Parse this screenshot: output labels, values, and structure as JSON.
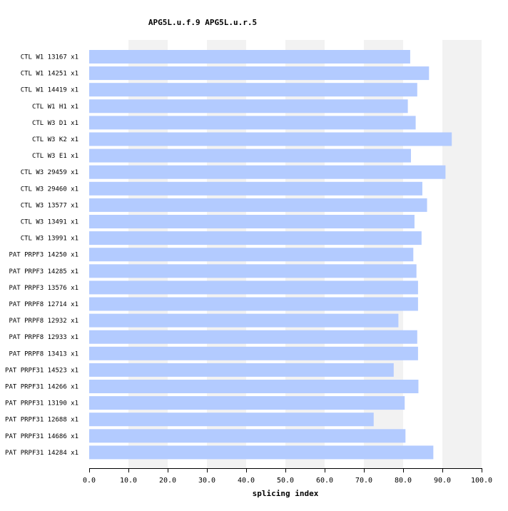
{
  "chart_data": {
    "type": "bar",
    "orientation": "horizontal",
    "title": "APG5L.u.f.9  APG5L.u.r.5",
    "xlabel": "splicing index",
    "ylabel": "",
    "xlim": [
      0,
      100
    ],
    "xticks": [
      "0.0",
      "10.0",
      "20.0",
      "30.0",
      "40.0",
      "50.0",
      "60.0",
      "70.0",
      "80.0",
      "90.0",
      "100.0"
    ],
    "grid": "alternating vertical bands",
    "bar_color": "#b3cbff",
    "band_color": "#f2f2f2",
    "categories": [
      "CTL W1 13167 x1",
      "CTL W1 14251 x1",
      "CTL W1 14419 x1",
      "CTL W1 H1 x1",
      "CTL W3 D1 x1",
      "CTL W3 K2 x1",
      "CTL W3 E1 x1",
      "CTL W3 29459 x1",
      "CTL W3 29460 x1",
      "CTL W3 13577 x1",
      "CTL W3 13491 x1",
      "CTL W3 13991 x1",
      "PAT PRPF3 14250 x1",
      "PAT PRPF3 14285 x1",
      "PAT PRPF3 13576 x1",
      "PAT PRPF8 12714 x1",
      "PAT PRPF8 12932 x1",
      "PAT PRPF8 12933 x1",
      "PAT PRPF8 13413 x1",
      "PAT PRPF31 14523 x1",
      "PAT PRPF31 14266 x1",
      "PAT PRPF31 13190 x1",
      "PAT PRPF31 12688 x1",
      "PAT PRPF31 14686 x1",
      "PAT PRPF31 14284 x1"
    ],
    "values": [
      81.8,
      86.6,
      83.6,
      81.2,
      83.2,
      92.4,
      82.0,
      90.8,
      84.9,
      86.1,
      82.9,
      84.7,
      82.6,
      83.4,
      83.8,
      83.8,
      78.8,
      83.6,
      83.8,
      77.6,
      83.9,
      80.4,
      72.5,
      80.6,
      87.7
    ]
  }
}
